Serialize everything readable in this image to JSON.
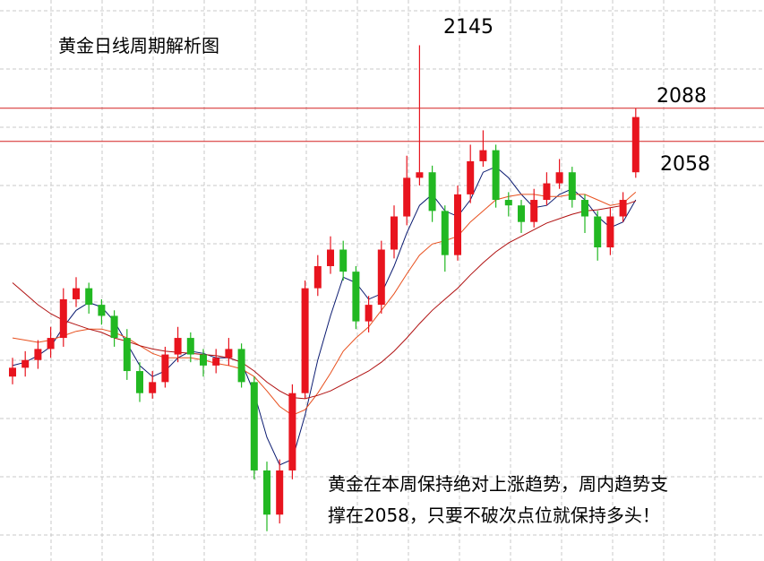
{
  "chart_data": {
    "type": "candlestick",
    "title": "黄金日线周期解析图",
    "note": [
      "黄金在本周保持绝对上涨趋势，周内趋势支",
      "撑在2058，只要不破次点位就保持多头！"
    ],
    "ylim": [
      1678,
      2186
    ],
    "up_color": "#e8141e",
    "down_color": "#22b822",
    "hlines": [
      2088,
      2058
    ],
    "hline_color": "#d42020",
    "peak_label_index": 32,
    "ohlc": {
      "open": [
        1845,
        1853,
        1860,
        1870,
        1880,
        1915,
        1925,
        1910,
        1900,
        1880,
        1850,
        1830,
        1840,
        1865,
        1880,
        1865,
        1855,
        1862,
        1870,
        1840,
        1760,
        1720,
        1760,
        1830,
        1925,
        1945,
        1960,
        1940,
        1895,
        1910,
        1960,
        1990,
        2025,
        2030,
        1995,
        1955,
        2010,
        2040,
        2050,
        2005,
        2000,
        1985,
        2005,
        2020,
        2030,
        2005,
        1990,
        1962,
        1990,
        2030
      ],
      "high": [
        1862,
        1868,
        1878,
        1890,
        1925,
        1935,
        1930,
        1915,
        1905,
        1888,
        1858,
        1850,
        1872,
        1890,
        1885,
        1870,
        1870,
        1880,
        1875,
        1845,
        1768,
        1770,
        1838,
        1932,
        1955,
        1972,
        1968,
        1945,
        1918,
        1968,
        2000,
        2045,
        2145,
        2036,
        2000,
        2018,
        2055,
        2068,
        2055,
        2012,
        2005,
        2015,
        2030,
        2042,
        2035,
        2010,
        1995,
        1998,
        2012,
        2088
      ],
      "low": [
        1838,
        1845,
        1852,
        1862,
        1872,
        1908,
        1902,
        1892,
        1872,
        1842,
        1822,
        1825,
        1835,
        1858,
        1858,
        1845,
        1848,
        1855,
        1835,
        1752,
        1705,
        1712,
        1752,
        1825,
        1918,
        1938,
        1932,
        1888,
        1885,
        1902,
        1952,
        1982,
        2018,
        1985,
        1940,
        1950,
        2002,
        2035,
        1998,
        1990,
        1975,
        1980,
        2000,
        2015,
        1998,
        1975,
        1950,
        1955,
        1985,
        2025
      ],
      "close": [
        1853,
        1860,
        1870,
        1880,
        1915,
        1925,
        1910,
        1900,
        1880,
        1850,
        1830,
        1840,
        1865,
        1880,
        1865,
        1855,
        1862,
        1870,
        1840,
        1760,
        1720,
        1760,
        1830,
        1925,
        1945,
        1960,
        1940,
        1895,
        1910,
        1960,
        1990,
        2025,
        2030,
        1995,
        1955,
        2010,
        2040,
        2050,
        2005,
        2000,
        1985,
        2005,
        2020,
        2030,
        2005,
        1990,
        1962,
        1990,
        2005,
        2080
      ]
    },
    "lines": [
      {
        "color": "#0a1a70",
        "values": [
          1855,
          1858,
          1864,
          1872,
          1890,
          1905,
          1912,
          1908,
          1895,
          1875,
          1855,
          1845,
          1850,
          1862,
          1868,
          1866,
          1862,
          1862,
          1858,
          1830,
          1790,
          1765,
          1770,
          1810,
          1860,
          1900,
          1935,
          1930,
          1915,
          1920,
          1945,
          1975,
          2000,
          2010,
          1995,
          1990,
          2005,
          2030,
          2035,
          2025,
          2010,
          1998,
          2000,
          2010,
          2015,
          2005,
          1990,
          1980,
          1985,
          2005
        ]
      },
      {
        "color": "#e8501e",
        "values": [
          1880,
          1878,
          1876,
          1878,
          1882,
          1886,
          1888,
          1888,
          1885,
          1880,
          1873,
          1866,
          1862,
          1862,
          1862,
          1860,
          1857,
          1855,
          1852,
          1845,
          1832,
          1818,
          1810,
          1815,
          1830,
          1848,
          1868,
          1880,
          1890,
          1905,
          1920,
          1938,
          1955,
          1965,
          1968,
          1972,
          1985,
          1995,
          2005,
          2008,
          2010,
          2010,
          2008,
          2008,
          2010,
          2010,
          2005,
          2000,
          2002,
          2012
        ]
      },
      {
        "color": "#b01010",
        "values": [
          1930,
          1920,
          1910,
          1902,
          1896,
          1892,
          1888,
          1885,
          1880,
          1877,
          1873,
          1870,
          1868,
          1867,
          1866,
          1865,
          1864,
          1862,
          1858,
          1850,
          1840,
          1832,
          1826,
          1825,
          1828,
          1832,
          1838,
          1844,
          1850,
          1858,
          1868,
          1880,
          1893,
          1905,
          1915,
          1925,
          1937,
          1948,
          1958,
          1966,
          1972,
          1978,
          1984,
          1988,
          1992,
          1995,
          1996,
          1998,
          2000,
          2004
        ]
      }
    ]
  }
}
